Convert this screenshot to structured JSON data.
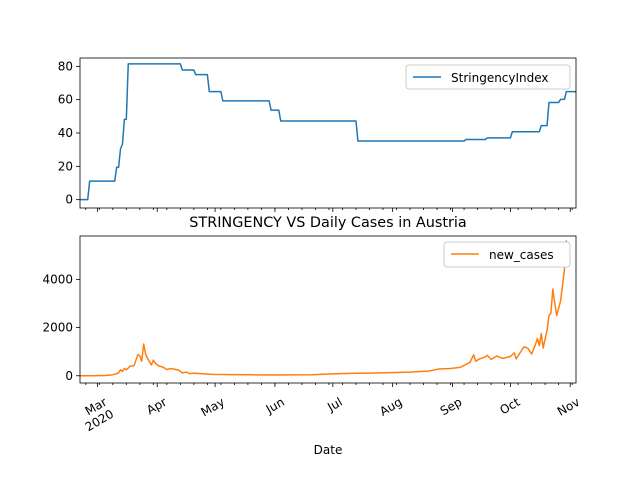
{
  "chart_data": [
    {
      "type": "line",
      "title": "",
      "xlabel": "",
      "ylabel": "",
      "ylim": [
        -5,
        85
      ],
      "yticks": [
        0,
        20,
        40,
        60,
        80
      ],
      "grid": false,
      "legend_position": "top-right",
      "series": [
        {
          "name": "StringencyIndex",
          "color": "#1f77b4",
          "points": [
            [
              "2020-02-21",
              0
            ],
            [
              "2020-02-25",
              0
            ],
            [
              "2020-02-26",
              11.11
            ],
            [
              "2020-03-10",
              11.11
            ],
            [
              "2020-03-11",
              19.44
            ],
            [
              "2020-03-12",
              19.44
            ],
            [
              "2020-03-13",
              30.56
            ],
            [
              "2020-03-14",
              33.33
            ],
            [
              "2020-03-15",
              48.15
            ],
            [
              "2020-03-16",
              48.15
            ],
            [
              "2020-03-17",
              81.48
            ],
            [
              "2020-04-13",
              81.48
            ],
            [
              "2020-04-14",
              77.78
            ],
            [
              "2020-04-20",
              77.78
            ],
            [
              "2020-04-21",
              75.0
            ],
            [
              "2020-04-27",
              75.0
            ],
            [
              "2020-04-28",
              64.81
            ],
            [
              "2020-05-04",
              64.81
            ],
            [
              "2020-05-05",
              59.26
            ],
            [
              "2020-05-29",
              59.26
            ],
            [
              "2020-05-30",
              53.7
            ],
            [
              "2020-06-03",
              53.7
            ],
            [
              "2020-06-04",
              47.22
            ],
            [
              "2020-07-13",
              47.22
            ],
            [
              "2020-07-14",
              35.19
            ],
            [
              "2020-09-07",
              35.19
            ],
            [
              "2020-09-08",
              36.11
            ],
            [
              "2020-09-18",
              36.11
            ],
            [
              "2020-09-19",
              37.04
            ],
            [
              "2020-10-01",
              37.04
            ],
            [
              "2020-10-02",
              40.74
            ],
            [
              "2020-10-16",
              40.74
            ],
            [
              "2020-10-17",
              44.44
            ],
            [
              "2020-10-20",
              44.44
            ],
            [
              "2020-10-21",
              58.33
            ],
            [
              "2020-10-26",
              58.33
            ],
            [
              "2020-10-27",
              60.19
            ],
            [
              "2020-10-29",
              60.19
            ],
            [
              "2020-10-30",
              64.81
            ],
            [
              "2020-11-04",
              64.81
            ]
          ]
        }
      ]
    },
    {
      "type": "line",
      "title": "STRINGENCY VS Daily Cases in Austria",
      "xlabel": "Date",
      "ylabel": "",
      "ylim": [
        -300,
        5800
      ],
      "yticks": [
        0,
        2000,
        4000
      ],
      "xlim": [
        "2020-02-21",
        "2020-11-04"
      ],
      "xtick_major": [
        {
          "date": "2020-03-01",
          "label": "Mar\n2020"
        },
        {
          "date": "2020-04-01",
          "label": "Apr"
        },
        {
          "date": "2020-05-01",
          "label": "May"
        },
        {
          "date": "2020-06-01",
          "label": "Jun"
        },
        {
          "date": "2020-07-01",
          "label": "Jul"
        },
        {
          "date": "2020-08-01",
          "label": "Aug"
        },
        {
          "date": "2020-09-01",
          "label": "Sep"
        },
        {
          "date": "2020-10-01",
          "label": "Oct"
        },
        {
          "date": "2020-11-01",
          "label": "Nov"
        }
      ],
      "grid": false,
      "legend_position": "top-right",
      "series": [
        {
          "name": "new_cases",
          "color": "#ff7f0e",
          "points": [
            [
              "2020-02-21",
              0
            ],
            [
              "2020-02-28",
              2
            ],
            [
              "2020-03-05",
              10
            ],
            [
              "2020-03-08",
              30
            ],
            [
              "2020-03-10",
              60
            ],
            [
              "2020-03-12",
              120
            ],
            [
              "2020-03-13",
              250
            ],
            [
              "2020-03-14",
              180
            ],
            [
              "2020-03-15",
              300
            ],
            [
              "2020-03-16",
              250
            ],
            [
              "2020-03-17",
              320
            ],
            [
              "2020-03-18",
              400
            ],
            [
              "2020-03-20",
              420
            ],
            [
              "2020-03-21",
              650
            ],
            [
              "2020-03-22",
              880
            ],
            [
              "2020-03-23",
              830
            ],
            [
              "2020-03-24",
              600
            ],
            [
              "2020-03-25",
              1320
            ],
            [
              "2020-03-26",
              900
            ],
            [
              "2020-03-27",
              720
            ],
            [
              "2020-03-28",
              580
            ],
            [
              "2020-03-29",
              450
            ],
            [
              "2020-03-30",
              650
            ],
            [
              "2020-03-31",
              520
            ],
            [
              "2020-04-02",
              400
            ],
            [
              "2020-04-04",
              360
            ],
            [
              "2020-04-06",
              260
            ],
            [
              "2020-04-08",
              300
            ],
            [
              "2020-04-10",
              270
            ],
            [
              "2020-04-12",
              240
            ],
            [
              "2020-04-14",
              120
            ],
            [
              "2020-04-16",
              150
            ],
            [
              "2020-04-18",
              90
            ],
            [
              "2020-04-20",
              110
            ],
            [
              "2020-04-25",
              80
            ],
            [
              "2020-04-30",
              60
            ],
            [
              "2020-05-10",
              50
            ],
            [
              "2020-05-20",
              40
            ],
            [
              "2020-06-01",
              30
            ],
            [
              "2020-06-10",
              35
            ],
            [
              "2020-06-20",
              40
            ],
            [
              "2020-07-01",
              80
            ],
            [
              "2020-07-10",
              100
            ],
            [
              "2020-07-20",
              110
            ],
            [
              "2020-07-31",
              130
            ],
            [
              "2020-08-10",
              150
            ],
            [
              "2020-08-20",
              200
            ],
            [
              "2020-08-25",
              280
            ],
            [
              "2020-08-31",
              300
            ],
            [
              "2020-09-05",
              350
            ],
            [
              "2020-09-10",
              550
            ],
            [
              "2020-09-12",
              870
            ],
            [
              "2020-09-13",
              600
            ],
            [
              "2020-09-15",
              700
            ],
            [
              "2020-09-18",
              780
            ],
            [
              "2020-09-19",
              850
            ],
            [
              "2020-09-21",
              680
            ],
            [
              "2020-09-24",
              820
            ],
            [
              "2020-09-27",
              720
            ],
            [
              "2020-10-01",
              800
            ],
            [
              "2020-10-03",
              950
            ],
            [
              "2020-10-04",
              700
            ],
            [
              "2020-10-08",
              1200
            ],
            [
              "2020-10-10",
              1150
            ],
            [
              "2020-10-12",
              900
            ],
            [
              "2020-10-14",
              1300
            ],
            [
              "2020-10-15",
              1550
            ],
            [
              "2020-10-16",
              1250
            ],
            [
              "2020-10-17",
              1750
            ],
            [
              "2020-10-18",
              1150
            ],
            [
              "2020-10-20",
              1900
            ],
            [
              "2020-10-21",
              2500
            ],
            [
              "2020-10-22",
              2600
            ],
            [
              "2020-10-23",
              3600
            ],
            [
              "2020-10-24",
              3000
            ],
            [
              "2020-10-25",
              2500
            ],
            [
              "2020-10-27",
              3100
            ],
            [
              "2020-10-29",
              4400
            ],
            [
              "2020-10-30",
              5600
            ],
            [
              "2020-10-31",
              5100
            ],
            [
              "2020-11-01",
              4900
            ]
          ]
        }
      ]
    }
  ]
}
